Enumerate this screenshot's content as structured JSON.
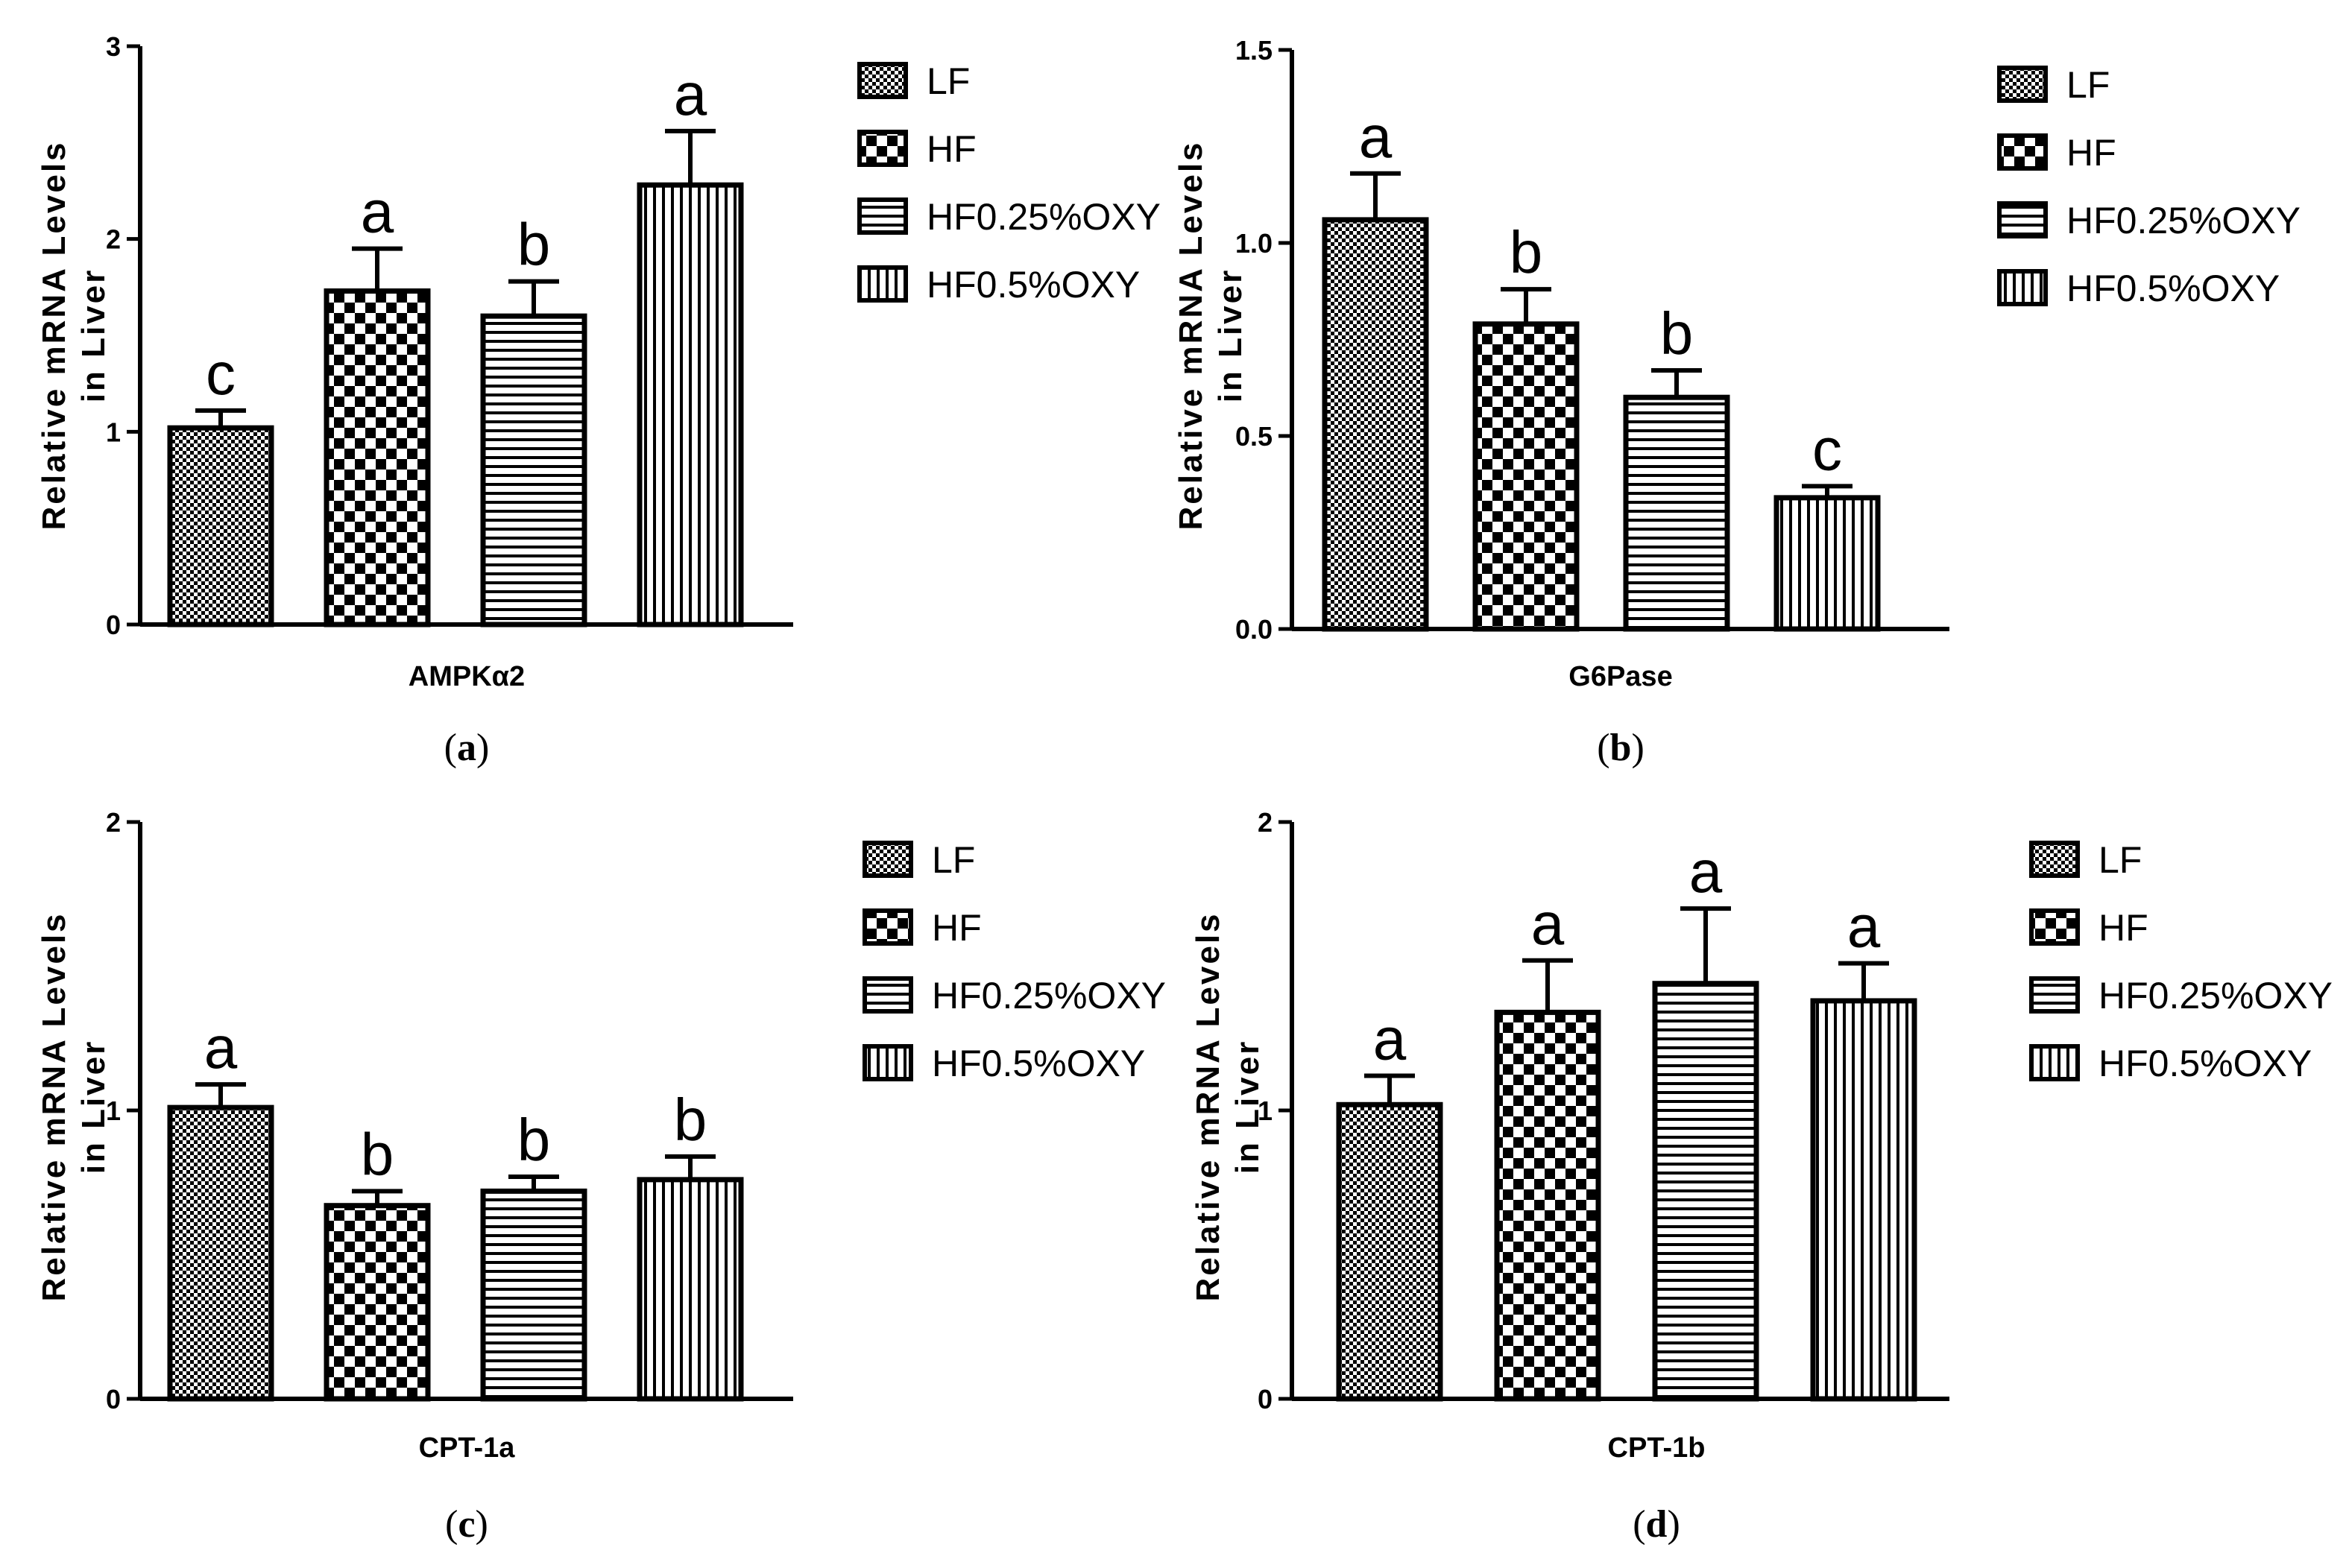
{
  "chart_data": [
    {
      "type": "bar",
      "panel": "(a)",
      "caption_letter": "a",
      "xlabel": "AMPKα2",
      "ylabel": [
        "Relative mRNA Levels",
        "in Liver"
      ],
      "ylim": [
        0,
        3
      ],
      "yticks": [
        "0",
        "1",
        "2",
        "3"
      ],
      "ytick_values": [
        0,
        1,
        2,
        3
      ],
      "categories": [
        "LF",
        "HF",
        "HF0.25%OXY",
        "HF0.5%OXY"
      ],
      "values": [
        1.02,
        1.73,
        1.6,
        2.28
      ],
      "errors": [
        0.09,
        0.22,
        0.18,
        0.28
      ],
      "letters": [
        "c",
        "a",
        "b",
        "a"
      ]
    },
    {
      "type": "bar",
      "panel": "(b)",
      "caption_letter": "b",
      "xlabel": "G6Pase",
      "ylabel": [
        "Relative mRNA Levels",
        "in Liver"
      ],
      "ylim": [
        0,
        1.5
      ],
      "yticks": [
        "0.0",
        "0.5",
        "1.0",
        "1.5"
      ],
      "ytick_values": [
        0,
        0.5,
        1.0,
        1.5
      ],
      "categories": [
        "LF",
        "HF",
        "HF0.25%OXY",
        "HF0.5%OXY"
      ],
      "values": [
        1.06,
        0.79,
        0.6,
        0.34
      ],
      "errors": [
        0.12,
        0.09,
        0.07,
        0.03
      ],
      "letters": [
        "a",
        "b",
        "b",
        "c"
      ]
    },
    {
      "type": "bar",
      "panel": "(c)",
      "caption_letter": "c",
      "xlabel": "CPT-1a",
      "ylabel": [
        "Relative mRNA Levels",
        "in Liver"
      ],
      "ylim": [
        0,
        2
      ],
      "yticks": [
        "0",
        "1",
        "2"
      ],
      "ytick_values": [
        0,
        1,
        2
      ],
      "categories": [
        "LF",
        "HF",
        "HF0.25%OXY",
        "HF0.5%OXY"
      ],
      "values": [
        1.01,
        0.67,
        0.72,
        0.76
      ],
      "errors": [
        0.08,
        0.05,
        0.05,
        0.08
      ],
      "letters": [
        "a",
        "b",
        "b",
        "b"
      ]
    },
    {
      "type": "bar",
      "panel": "(d)",
      "caption_letter": "d",
      "xlabel": "CPT-1b",
      "ylabel": [
        "Relative mRNA Levels",
        "in Liver"
      ],
      "ylim": [
        0,
        2
      ],
      "yticks": [
        "0",
        "1",
        "2"
      ],
      "ytick_values": [
        0,
        1,
        2
      ],
      "categories": [
        "LF",
        "HF",
        "HF0.25%OXY",
        "HF0.5%OXY"
      ],
      "values": [
        1.02,
        1.34,
        1.44,
        1.38
      ],
      "errors": [
        0.1,
        0.18,
        0.26,
        0.13
      ],
      "letters": [
        "a",
        "a",
        "a",
        "a"
      ]
    }
  ],
  "legend": [
    "LF",
    "HF",
    "HF0.25%OXY",
    "HF0.5%OXY"
  ],
  "colors": {
    "ink": "#000000",
    "background": "#ffffff"
  },
  "patterns": [
    "dense-check",
    "checkerboard",
    "horizontal-lines",
    "vertical-lines"
  ]
}
